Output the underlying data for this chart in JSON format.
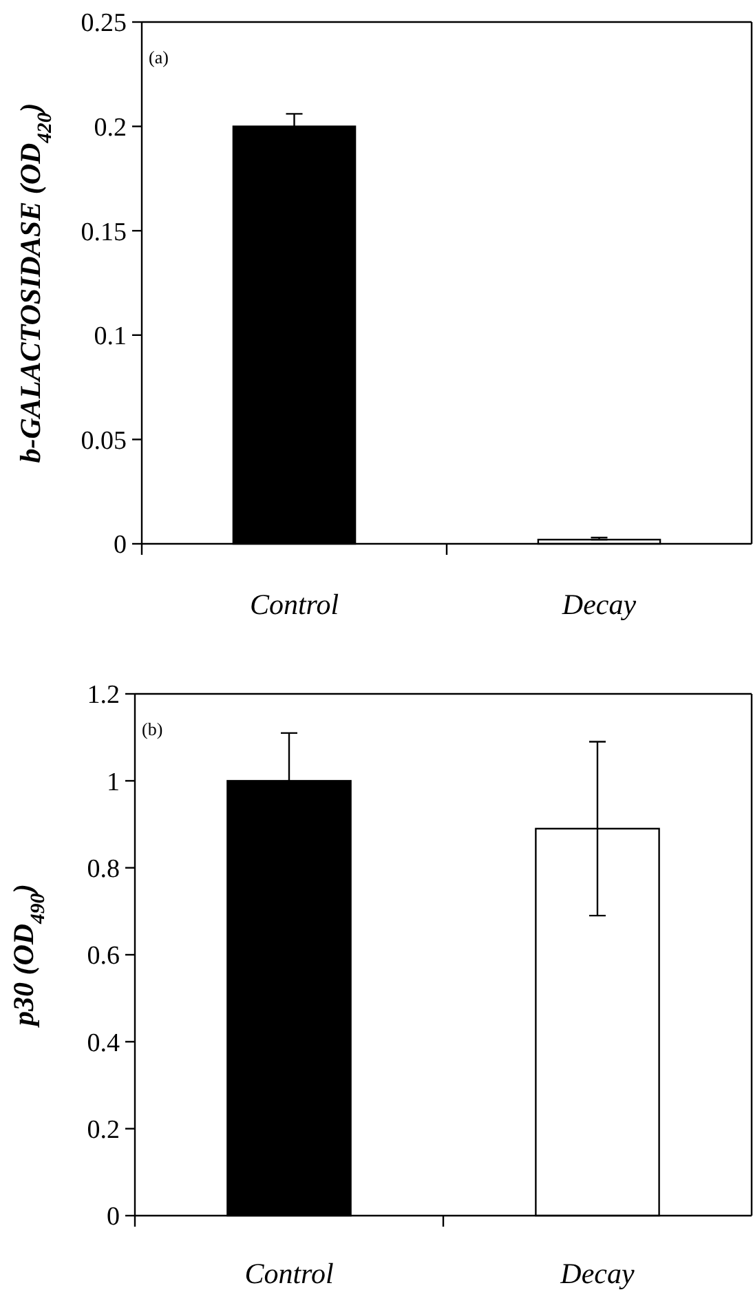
{
  "chart_data": [
    {
      "type": "bar",
      "categories": [
        "Control",
        "Decay"
      ],
      "values": [
        0.2,
        0.002
      ],
      "errors": [
        0.006,
        [
          0,
          0.001
        ]
      ],
      "colors": [
        "#000000",
        "#ffffff"
      ],
      "ylabel": "b-GALACTOSIDASE (OD$_{420}$)",
      "ylim": [
        0,
        0.25
      ],
      "yticks": [
        0,
        0.05,
        0.1,
        0.15,
        0.2,
        0.25
      ],
      "annotations": [
        "(a)"
      ],
      "grid": false
    },
    {
      "type": "bar",
      "categories": [
        "Control",
        "Decay"
      ],
      "values": [
        1.0,
        0.89
      ],
      "errors": [
        0.11,
        0.2
      ],
      "colors": [
        "#000000",
        "#ffffff"
      ],
      "ylabel": "p30 (OD$_{490}$)",
      "ylim": [
        0,
        1.2
      ],
      "yticks": [
        0,
        0.2,
        0.4,
        0.6,
        0.8,
        1,
        1.2
      ],
      "annotations": [
        "(b)"
      ],
      "grid": false
    }
  ]
}
